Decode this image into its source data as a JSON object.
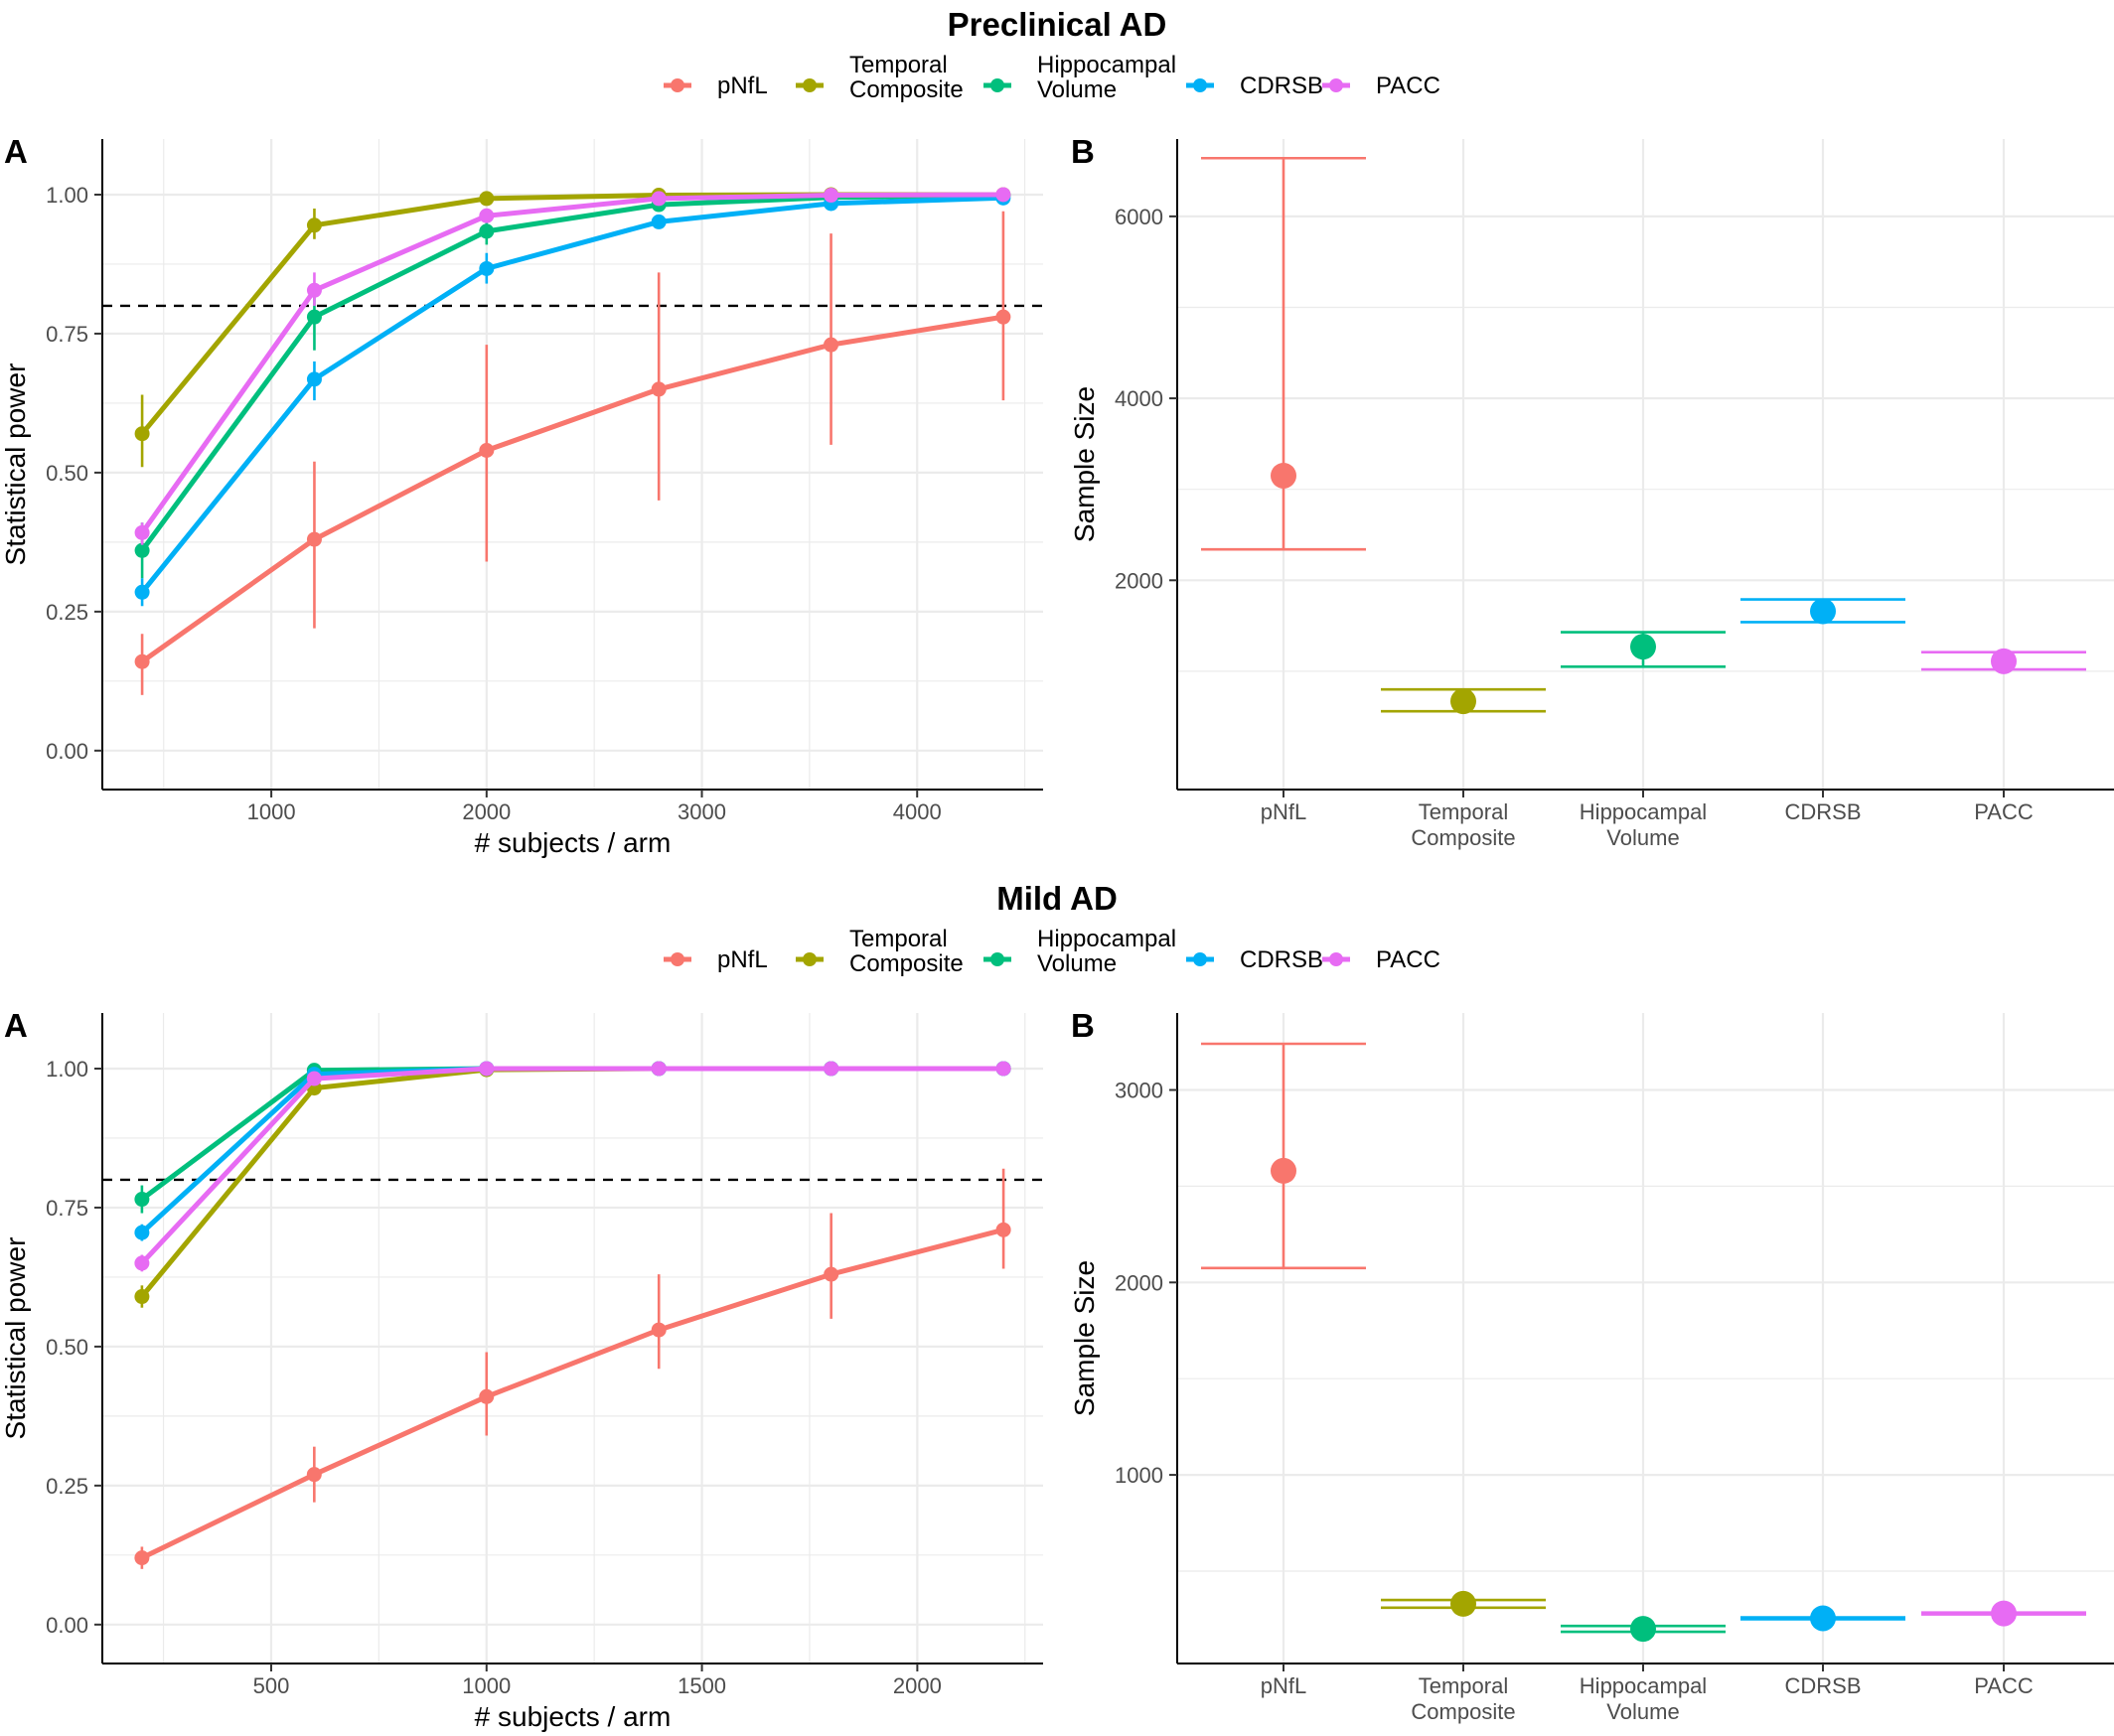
{
  "colors": {
    "pNfL": "#F8766D",
    "Temporal Composite": "#A3A500",
    "Hippocampal Volume": "#00BF7D",
    "CDRSB": "#00B0F6",
    "PACC": "#E76BF3",
    "grid": "#EBEBEB",
    "threshold": "#000000"
  },
  "legend_items": [
    {
      "key": "pNfL",
      "lines": [
        "pNfL"
      ]
    },
    {
      "key": "Temporal Composite",
      "lines": [
        "Temporal",
        "Composite"
      ]
    },
    {
      "key": "Hippocampal Volume",
      "lines": [
        "Hippocampal",
        "Volume"
      ]
    },
    {
      "key": "CDRSB",
      "lines": [
        "CDRSB"
      ]
    },
    {
      "key": "PACC",
      "lines": [
        "PACC"
      ]
    }
  ],
  "chart_data": [
    {
      "type": "line",
      "group_title": "Preclinical AD",
      "panel_label": "A",
      "xlabel": "# subjects / arm",
      "ylabel": "Statistical power",
      "xlim": [
        215,
        4585
      ],
      "ylim": [
        -0.07,
        1.1
      ],
      "xticks": [
        1000,
        2000,
        3000,
        4000
      ],
      "yticks": [
        0,
        0.25,
        0.5,
        0.75,
        1
      ],
      "ytick_labels": [
        "0.00",
        "0.25",
        "0.50",
        "0.75",
        "1.00"
      ],
      "threshold": 0.8,
      "x": [
        400,
        1200,
        2000,
        2800,
        3600,
        4400
      ],
      "series": [
        {
          "name": "pNfL",
          "values": [
            0.16,
            0.38,
            0.54,
            0.65,
            0.73,
            0.78
          ],
          "lower": [
            0.1,
            0.22,
            0.34,
            0.45,
            0.55,
            0.63
          ],
          "upper": [
            0.21,
            0.52,
            0.73,
            0.86,
            0.93,
            0.97
          ]
        },
        {
          "name": "Temporal Composite",
          "values": [
            0.57,
            0.945,
            0.993,
            0.999,
            1.0,
            1.0
          ],
          "lower": [
            0.51,
            0.92,
            0.99,
            0.997,
            1.0,
            1.0
          ],
          "upper": [
            0.64,
            0.975,
            0.997,
            1.0,
            1.0,
            1.0
          ]
        },
        {
          "name": "Hippocampal Volume",
          "values": [
            0.36,
            0.78,
            0.934,
            0.982,
            0.995,
            0.999
          ],
          "lower": [
            0.31,
            0.72,
            0.91,
            0.97,
            0.99,
            0.997
          ],
          "upper": [
            0.41,
            0.83,
            0.955,
            0.99,
            0.999,
            1.0
          ]
        },
        {
          "name": "CDRSB",
          "values": [
            0.285,
            0.668,
            0.867,
            0.951,
            0.984,
            0.994
          ],
          "lower": [
            0.26,
            0.63,
            0.84,
            0.94,
            0.978,
            0.99
          ],
          "upper": [
            0.31,
            0.7,
            0.895,
            0.962,
            0.99,
            0.998
          ]
        },
        {
          "name": "PACC",
          "values": [
            0.392,
            0.828,
            0.962,
            0.993,
            0.999,
            1.0
          ],
          "lower": [
            0.37,
            0.8,
            0.95,
            0.988,
            0.997,
            1.0
          ],
          "upper": [
            0.41,
            0.86,
            0.975,
            0.997,
            1.0,
            1.0
          ]
        }
      ]
    },
    {
      "type": "scatter",
      "panel_label": "B",
      "ylabel": "Sample Size",
      "ylim": [
        -300,
        6850
      ],
      "yticks": [
        2000,
        4000,
        6000
      ],
      "ytick_labels": [
        "2000",
        "4000",
        "6000"
      ],
      "minor_yticks": [
        1000,
        3000,
        5000
      ],
      "categories": [
        "pNfL",
        "Temporal Composite",
        "Hippocampal Volume",
        "CDRSB",
        "PACC"
      ],
      "category_labels": [
        [
          "pNfL"
        ],
        [
          "Temporal",
          "Composite"
        ],
        [
          "Hippocampal",
          "Volume"
        ],
        [
          "CDRSB"
        ],
        [
          "PACC"
        ]
      ],
      "values": [
        3150,
        670,
        1270,
        1660,
        1110
      ],
      "lower": [
        2340,
        560,
        1050,
        1540,
        1020
      ],
      "upper": [
        6640,
        800,
        1430,
        1790,
        1210
      ]
    },
    {
      "type": "line",
      "group_title": "Mild AD",
      "panel_label": "A",
      "xlabel": "# subjects / arm",
      "ylabel": "Statistical power",
      "xlim": [
        108,
        2292
      ],
      "ylim": [
        -0.07,
        1.1
      ],
      "xticks": [
        500,
        1000,
        1500,
        2000
      ],
      "yticks": [
        0,
        0.25,
        0.5,
        0.75,
        1
      ],
      "ytick_labels": [
        "0.00",
        "0.25",
        "0.50",
        "0.75",
        "1.00"
      ],
      "threshold": 0.8,
      "x": [
        200,
        600,
        1000,
        1400,
        1800,
        2200
      ],
      "series": [
        {
          "name": "pNfL",
          "values": [
            0.12,
            0.27,
            0.41,
            0.53,
            0.63,
            0.71
          ],
          "lower": [
            0.1,
            0.22,
            0.34,
            0.46,
            0.55,
            0.64
          ],
          "upper": [
            0.14,
            0.32,
            0.49,
            0.63,
            0.74,
            0.82
          ]
        },
        {
          "name": "Temporal Composite",
          "values": [
            0.59,
            0.965,
            0.998,
            1.0,
            1.0,
            1.0
          ],
          "lower": [
            0.57,
            0.955,
            0.996,
            1.0,
            1.0,
            1.0
          ],
          "upper": [
            0.61,
            0.975,
            1.0,
            1.0,
            1.0,
            1.0
          ]
        },
        {
          "name": "Hippocampal Volume",
          "values": [
            0.765,
            0.997,
            1.0,
            1.0,
            1.0,
            1.0
          ],
          "lower": [
            0.74,
            0.993,
            1.0,
            1.0,
            1.0,
            1.0
          ],
          "upper": [
            0.79,
            1.0,
            1.0,
            1.0,
            1.0,
            1.0
          ]
        },
        {
          "name": "CDRSB",
          "values": [
            0.705,
            0.99,
            1.0,
            1.0,
            1.0,
            1.0
          ],
          "lower": [
            0.69,
            0.985,
            1.0,
            1.0,
            1.0,
            1.0
          ],
          "upper": [
            0.72,
            0.995,
            1.0,
            1.0,
            1.0,
            1.0
          ]
        },
        {
          "name": "PACC",
          "values": [
            0.65,
            0.982,
            1.0,
            1.0,
            1.0,
            1.0
          ],
          "lower": [
            0.635,
            0.975,
            1.0,
            1.0,
            1.0,
            1.0
          ],
          "upper": [
            0.665,
            0.988,
            1.0,
            1.0,
            1.0,
            1.0
          ]
        }
      ]
    },
    {
      "type": "scatter",
      "panel_label": "B",
      "ylabel": "Sample Size",
      "ylim": [
        20,
        3400
      ],
      "yticks": [
        1000,
        2000,
        3000
      ],
      "ytick_labels": [
        "1000",
        "2000",
        "3000"
      ],
      "minor_yticks": [
        500,
        1500,
        2500
      ],
      "categories": [
        "pNfL",
        "Temporal Composite",
        "Hippocampal Volume",
        "CDRSB",
        "PACC"
      ],
      "category_labels": [
        [
          "pNfL"
        ],
        [
          "Temporal",
          "Composite"
        ],
        [
          "Hippocampal",
          "Volume"
        ],
        [
          "CDRSB"
        ],
        [
          "PACC"
        ]
      ],
      "values": [
        2580,
        330,
        200,
        255,
        280
      ],
      "lower": [
        2075,
        310,
        185,
        250,
        275
      ],
      "upper": [
        3240,
        350,
        215,
        260,
        285
      ]
    }
  ]
}
